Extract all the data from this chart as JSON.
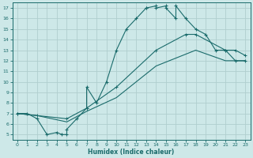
{
  "bg_color": "#cde8e8",
  "grid_color": "#b8d8d8",
  "line_color": "#1a6b6b",
  "xlabel": "Humidex (Indice chaleur)",
  "xlim": [
    -0.5,
    23.5
  ],
  "ylim": [
    4.5,
    17.5
  ],
  "xticks": [
    0,
    1,
    2,
    3,
    4,
    5,
    6,
    7,
    8,
    9,
    10,
    11,
    12,
    13,
    14,
    15,
    16,
    17,
    18,
    19,
    20,
    21,
    22,
    23
  ],
  "yticks": [
    5,
    6,
    7,
    8,
    9,
    10,
    11,
    12,
    13,
    14,
    15,
    16,
    17
  ],
  "line1_x": [
    0,
    1,
    2,
    3,
    4,
    4.5,
    5,
    5,
    6,
    7,
    7,
    8,
    9,
    10,
    11,
    12,
    13,
    13,
    14,
    14,
    15,
    15,
    16,
    16,
    17,
    18,
    19,
    20,
    21,
    22,
    23
  ],
  "line1_y": [
    7,
    7,
    6.5,
    5,
    5.2,
    5,
    5,
    5.5,
    6.5,
    7.5,
    9.5,
    8,
    10,
    13,
    15,
    16,
    17,
    17,
    17.2,
    17,
    17.2,
    17,
    16,
    17.2,
    16,
    15,
    14.5,
    13,
    13,
    12,
    12
  ],
  "line2_x": [
    0,
    2,
    5,
    7,
    10,
    14,
    17,
    18,
    21,
    22,
    23
  ],
  "line2_y": [
    7,
    6.8,
    6.5,
    7.5,
    9.5,
    13,
    14.5,
    14.5,
    13,
    13,
    12.5
  ],
  "line3_x": [
    0,
    2,
    5,
    7,
    10,
    14,
    18,
    21,
    22,
    23
  ],
  "line3_y": [
    7,
    6.8,
    6.2,
    7.2,
    8.5,
    11.5,
    13,
    12,
    12,
    12
  ]
}
